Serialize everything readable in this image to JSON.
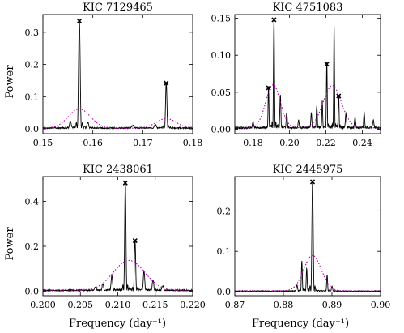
{
  "figure": {
    "ylabel_left": "Power",
    "xlabel_bottom": "Frequency (day⁻¹)"
  },
  "colors": {
    "observed": "#000000",
    "model": "#b000b0",
    "marker": "#000000"
  },
  "chart_data": [
    {
      "type": "line",
      "title": "KIC 7129465",
      "xlim": [
        0.15,
        0.18
      ],
      "ylim": [
        -0.015,
        0.355
      ],
      "xticks": [
        0.15,
        0.16,
        0.17,
        0.18
      ],
      "xtick_labels": [
        "0.15",
        "0.16",
        "0.17",
        "0.18"
      ],
      "yticks": [
        0.0,
        0.1,
        0.2,
        0.3
      ],
      "ytick_labels": [
        "0.0",
        "0.1",
        "0.2",
        "0.3"
      ],
      "peaks": [
        {
          "x": 0.1573,
          "y": 0.335,
          "w": 0.00042
        },
        {
          "x": 0.1747,
          "y": 0.142,
          "w": 0.00035
        },
        {
          "x": 0.1555,
          "y": 0.022,
          "w": 0.0004
        },
        {
          "x": 0.159,
          "y": 0.018,
          "w": 0.0004
        },
        {
          "x": 0.168,
          "y": 0.008,
          "w": 0.0006
        },
        {
          "x": 0.1725,
          "y": 0.012,
          "w": 0.0005
        }
      ],
      "marked": [
        {
          "x": 0.1573,
          "y": 0.335
        },
        {
          "x": 0.1747,
          "y": 0.142
        }
      ],
      "model": [
        {
          "mu": 0.1573,
          "amp": 0.06,
          "sigma": 0.0022
        },
        {
          "mu": 0.1747,
          "amp": 0.03,
          "sigma": 0.002
        }
      ],
      "noise": 0.004
    },
    {
      "type": "line",
      "title": "KIC 4751083",
      "xlim": [
        0.17,
        0.25
      ],
      "ylim": [
        -0.006,
        0.155
      ],
      "xticks": [
        0.18,
        0.2,
        0.22,
        0.24
      ],
      "xtick_labels": [
        "0.18",
        "0.20",
        "0.22",
        "0.24"
      ],
      "yticks": [
        0.0,
        0.05,
        0.1,
        0.15
      ],
      "ytick_labels": [
        "0.00",
        "0.05",
        "0.10",
        "0.15"
      ],
      "peaks": [
        {
          "x": 0.1885,
          "y": 0.056,
          "w": 0.0006
        },
        {
          "x": 0.1915,
          "y": 0.148,
          "w": 0.0007
        },
        {
          "x": 0.195,
          "y": 0.045,
          "w": 0.0007
        },
        {
          "x": 0.1985,
          "y": 0.02,
          "w": 0.0008
        },
        {
          "x": 0.205,
          "y": 0.01,
          "w": 0.0008
        },
        {
          "x": 0.212,
          "y": 0.02,
          "w": 0.0007
        },
        {
          "x": 0.215,
          "y": 0.03,
          "w": 0.0007
        },
        {
          "x": 0.218,
          "y": 0.035,
          "w": 0.0006
        },
        {
          "x": 0.2205,
          "y": 0.088,
          "w": 0.0006
        },
        {
          "x": 0.2245,
          "y": 0.136,
          "w": 0.0006
        },
        {
          "x": 0.227,
          "y": 0.045,
          "w": 0.0006
        },
        {
          "x": 0.231,
          "y": 0.02,
          "w": 0.0008
        },
        {
          "x": 0.236,
          "y": 0.015,
          "w": 0.0008
        },
        {
          "x": 0.241,
          "y": 0.022,
          "w": 0.0007
        },
        {
          "x": 0.18,
          "y": 0.008,
          "w": 0.0009
        },
        {
          "x": 0.246,
          "y": 0.01,
          "w": 0.0009
        }
      ],
      "marked": [
        {
          "x": 0.1885,
          "y": 0.056
        },
        {
          "x": 0.1915,
          "y": 0.148
        },
        {
          "x": 0.2205,
          "y": 0.088
        },
        {
          "x": 0.227,
          "y": 0.045
        }
      ],
      "model": [
        {
          "mu": 0.191,
          "amp": 0.058,
          "sigma": 0.004
        },
        {
          "mu": 0.2235,
          "amp": 0.057,
          "sigma": 0.005
        }
      ],
      "noise": 0.003
    },
    {
      "type": "line",
      "title": "KIC 2438061",
      "xlim": [
        0.2,
        0.22
      ],
      "ylim": [
        -0.02,
        0.51
      ],
      "xticks": [
        0.2,
        0.205,
        0.21,
        0.215,
        0.22
      ],
      "xtick_labels": [
        "0.200",
        "0.205",
        "0.210",
        "0.215",
        "0.220"
      ],
      "yticks": [
        0.0,
        0.2,
        0.4
      ],
      "ytick_labels": [
        "0.0",
        "0.2",
        "0.4"
      ],
      "peaks": [
        {
          "x": 0.211,
          "y": 0.482,
          "w": 0.00022
        },
        {
          "x": 0.2123,
          "y": 0.225,
          "w": 0.00022
        },
        {
          "x": 0.2092,
          "y": 0.065,
          "w": 0.00025
        },
        {
          "x": 0.2135,
          "y": 0.085,
          "w": 0.00025
        },
        {
          "x": 0.208,
          "y": 0.03,
          "w": 0.00025
        },
        {
          "x": 0.2147,
          "y": 0.045,
          "w": 0.00025
        },
        {
          "x": 0.207,
          "y": 0.015,
          "w": 0.0003
        },
        {
          "x": 0.216,
          "y": 0.02,
          "w": 0.0003
        }
      ],
      "marked": [
        {
          "x": 0.211,
          "y": 0.482
        },
        {
          "x": 0.2123,
          "y": 0.225
        }
      ],
      "model": [
        {
          "mu": 0.2115,
          "amp": 0.135,
          "sigma": 0.0021
        }
      ],
      "noise": 0.006
    },
    {
      "type": "line",
      "title": "KIC 2445975",
      "xlim": [
        0.87,
        0.9
      ],
      "ylim": [
        -0.01,
        0.285
      ],
      "xticks": [
        0.87,
        0.88,
        0.89,
        0.9
      ],
      "xtick_labels": [
        "0.87",
        "0.88",
        "0.89",
        "0.90"
      ],
      "yticks": [
        0.0,
        0.1,
        0.2
      ],
      "ytick_labels": [
        "0.0",
        "0.1",
        "0.2"
      ],
      "peaks": [
        {
          "x": 0.886,
          "y": 0.272,
          "w": 0.00035
        },
        {
          "x": 0.8838,
          "y": 0.075,
          "w": 0.00025
        },
        {
          "x": 0.8848,
          "y": 0.055,
          "w": 0.00025
        },
        {
          "x": 0.889,
          "y": 0.04,
          "w": 0.00025
        },
        {
          "x": 0.8828,
          "y": 0.015,
          "w": 0.0003
        },
        {
          "x": 0.89,
          "y": 0.012,
          "w": 0.0003
        }
      ],
      "marked": [
        {
          "x": 0.886,
          "y": 0.272
        }
      ],
      "model": [
        {
          "mu": 0.886,
          "amp": 0.088,
          "sigma": 0.0018
        }
      ],
      "noise": 0.002
    }
  ]
}
